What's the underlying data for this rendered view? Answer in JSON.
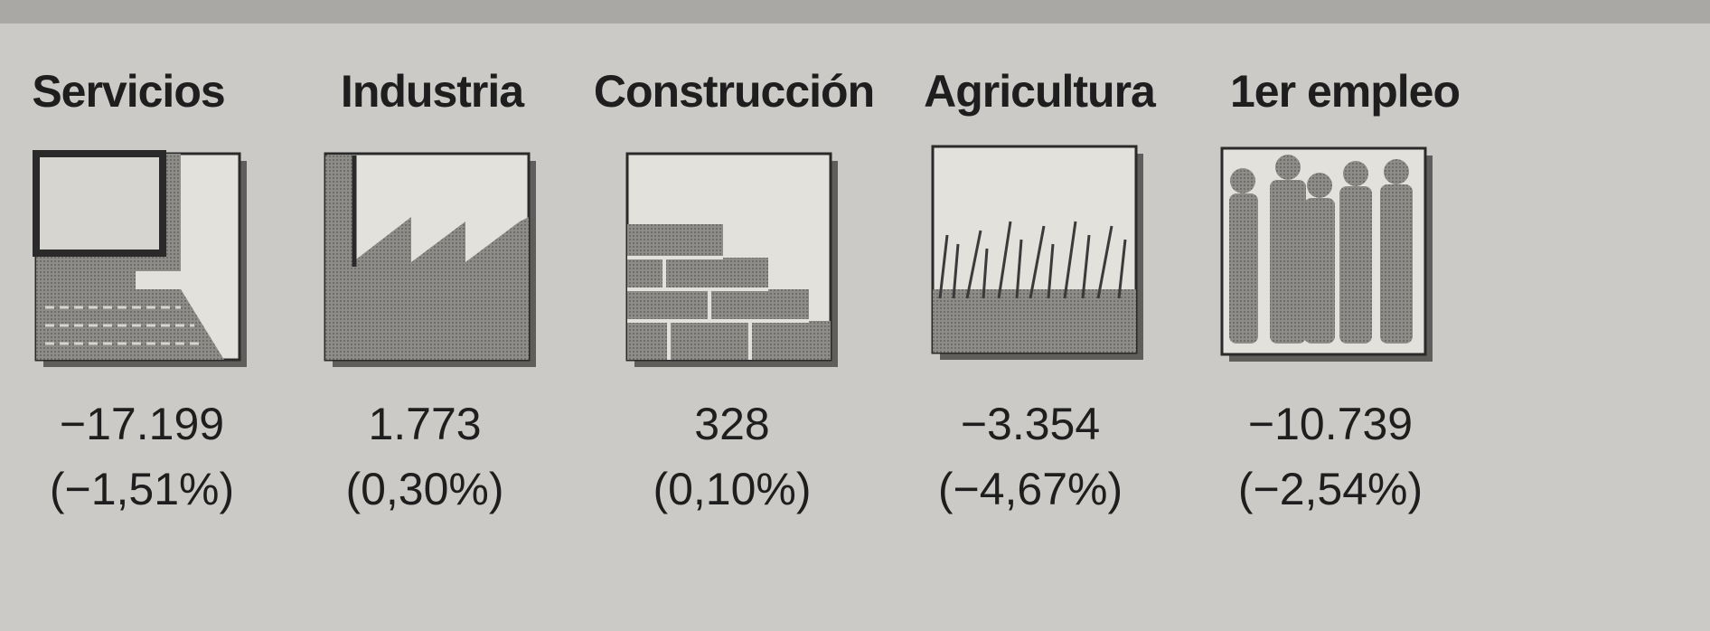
{
  "sectors": [
    {
      "label": "Servicios",
      "value": "−17.199",
      "percent": "(−1,51%)"
    },
    {
      "label": "Industria",
      "value": "1.773",
      "percent": "(0,30%)"
    },
    {
      "label": "Construcción",
      "value": "328",
      "percent": "(0,10%)"
    },
    {
      "label": "Agricultura",
      "value": "−3.354",
      "percent": "(−4,67%)"
    },
    {
      "label": "1er empleo",
      "value": "−10.739",
      "percent": "(−2,54%)"
    }
  ]
}
